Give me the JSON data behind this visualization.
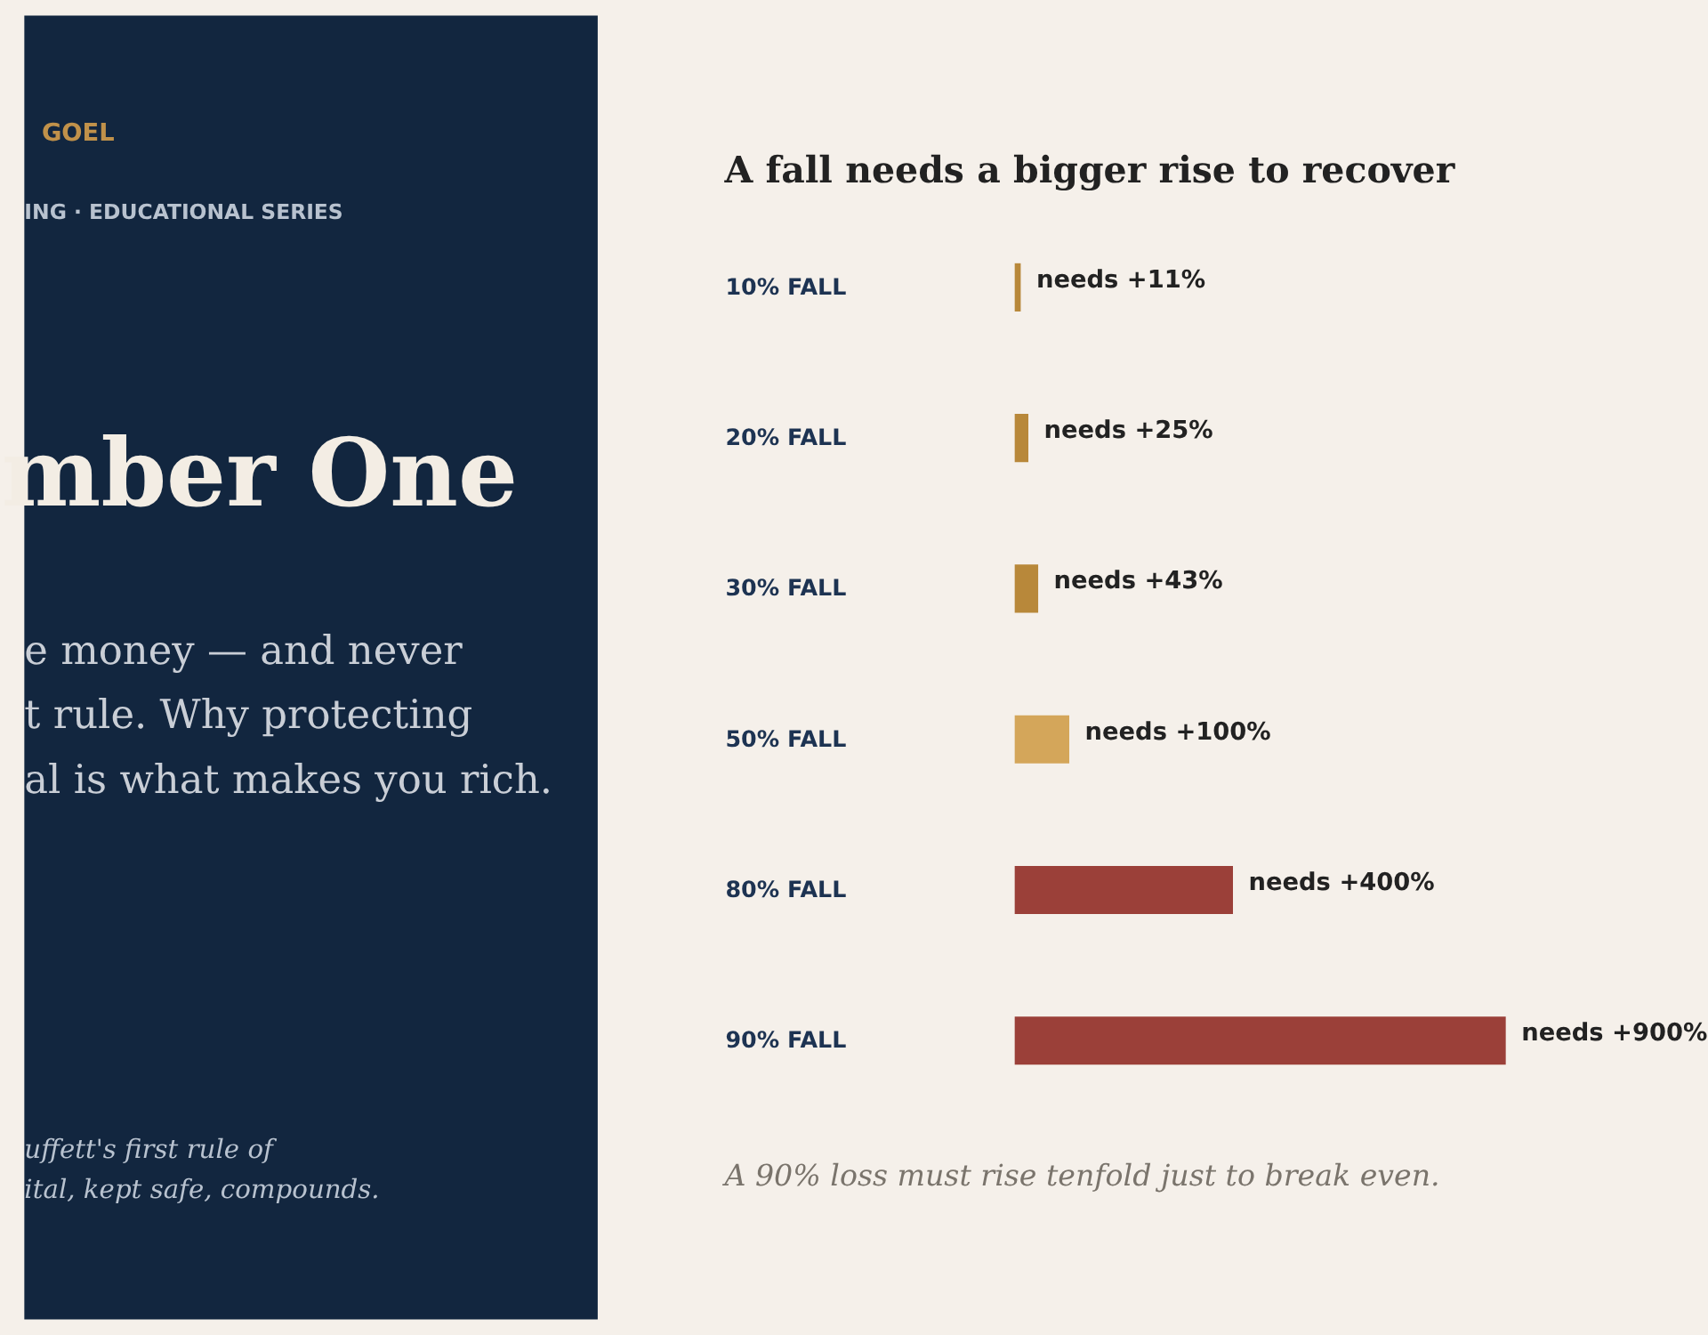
{
  "chart_data": [
    {
      "type": "other",
      "annotations": [
        "GOEL",
        "ING  ·  EDUCATIONAL SERIES",
        "mber One",
        "e money — and never",
        "t rule. Why protecting",
        "al is what makes you rich.",
        "uffett's first rule of",
        "ital, kept safe, compounds."
      ]
    },
    {
      "type": "bar",
      "orientation": "horizontal",
      "title": "A fall needs a bigger rise to recover",
      "categories": [
        "10% FALL",
        "20% FALL",
        "30% FALL",
        "50% FALL",
        "80% FALL",
        "90% FALL"
      ],
      "values": [
        11,
        25,
        43,
        100,
        400,
        900
      ],
      "colors": [
        "#b8883a",
        "#b8883a",
        "#b8883a",
        "#d4a65a",
        "#9b4039",
        "#9b4039"
      ],
      "value_labels": [
        "needs +11%",
        "needs +25%",
        "needs +43%",
        "needs +100%",
        "needs +400%",
        "needs +900%"
      ],
      "annotations": [
        "A 90% loss must rise tenfold just to break even."
      ]
    }
  ]
}
